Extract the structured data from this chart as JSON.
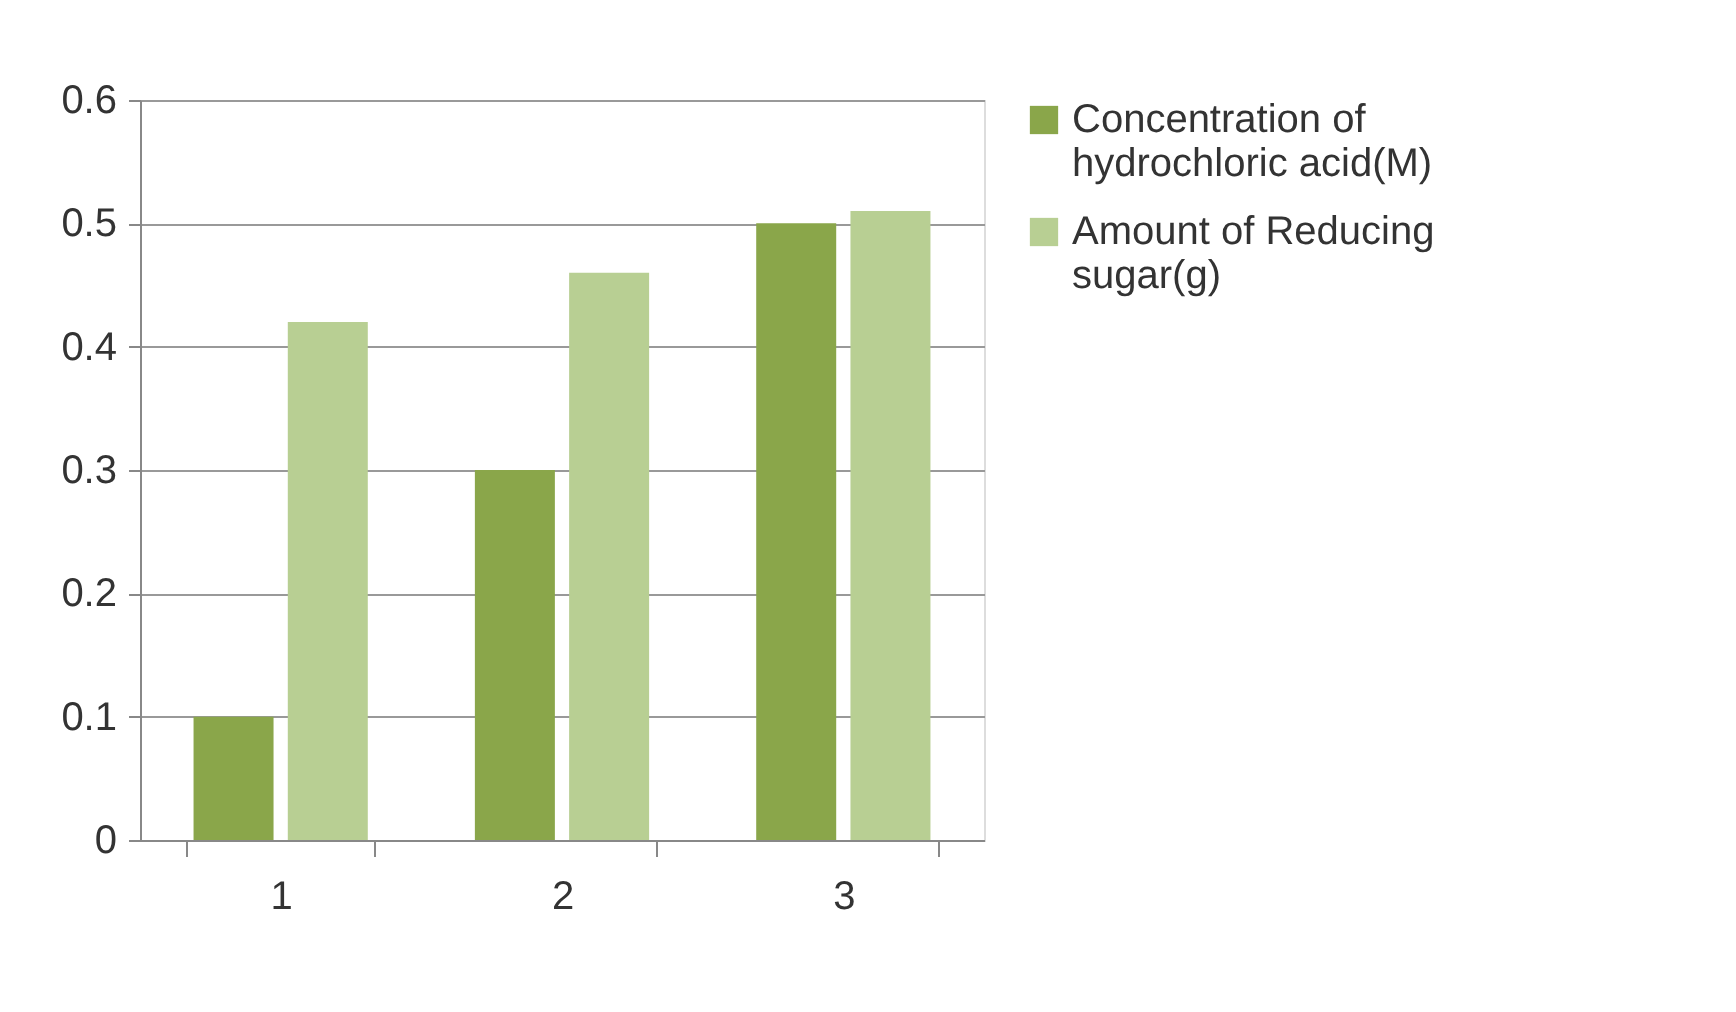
{
  "chart_data": {
    "type": "bar",
    "categories": [
      "1",
      "2",
      "3"
    ],
    "series": [
      {
        "name": "Concentration of hydrochloric acid(M)",
        "color": "#8aa64a",
        "values": [
          0.1,
          0.3,
          0.5
        ]
      },
      {
        "name": "Amount of Reducing sugar(g)",
        "color": "#b8cf93",
        "values": [
          0.42,
          0.46,
          0.51
        ]
      }
    ],
    "ylim": [
      0,
      0.6
    ],
    "yticks": [
      0,
      0.1,
      0.2,
      0.3,
      0.4,
      0.5,
      0.6
    ],
    "grid": "y",
    "legend": "right"
  }
}
